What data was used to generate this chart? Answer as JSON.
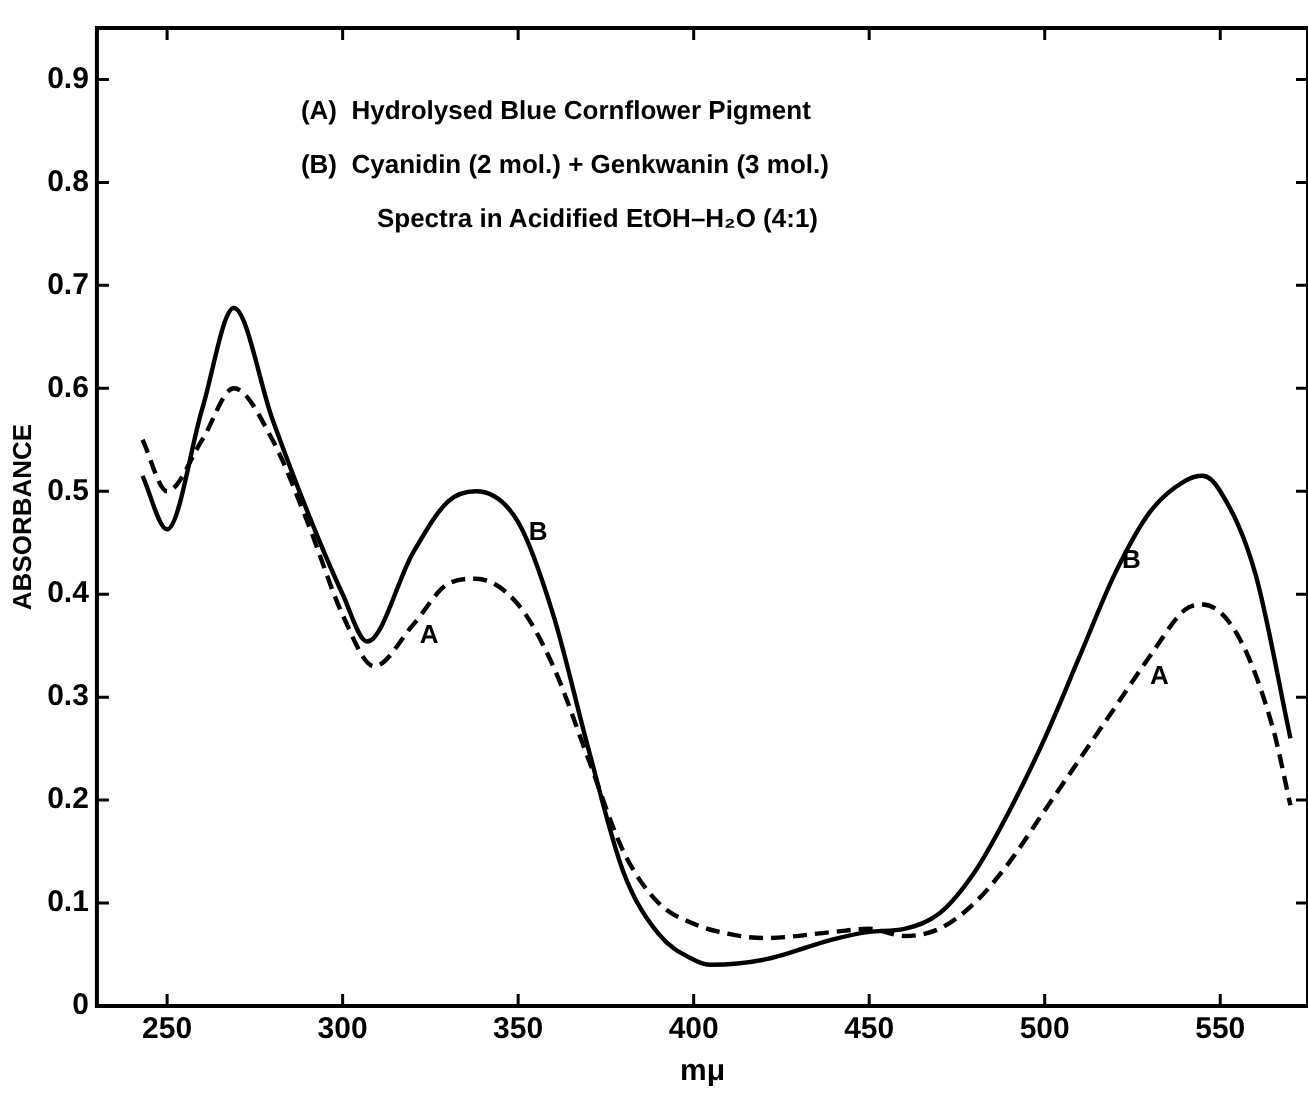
{
  "chart_data": {
    "type": "line",
    "xlabel": "mμ",
    "ylabel": "ABSORBANCE",
    "xlim": [
      230,
      575
    ],
    "xticks": [
      250,
      300,
      350,
      400,
      450,
      500,
      550
    ],
    "ylim": [
      0,
      0.95
    ],
    "yticks": [
      0,
      0.1,
      0.2,
      0.3,
      0.4,
      0.5,
      0.6,
      0.7,
      0.8,
      0.9
    ],
    "grid": false,
    "legend": false,
    "marker": "none",
    "series": [
      {
        "color": "#000000",
        "line_style": "solid",
        "x": [
          243,
          250,
          260,
          269,
          280,
          290,
          300,
          307,
          320,
          330,
          338,
          350,
          360,
          370,
          380,
          390,
          400,
          405,
          420,
          440,
          450,
          460,
          470,
          480,
          490,
          500,
          510,
          520,
          530,
          540,
          545,
          550,
          560,
          570
        ],
        "values": [
          0.515,
          0.463,
          0.58,
          0.678,
          0.57,
          0.48,
          0.4,
          0.354,
          0.44,
          0.49,
          0.5,
          0.47,
          0.38,
          0.25,
          0.13,
          0.07,
          0.045,
          0.04,
          0.045,
          0.065,
          0.072,
          0.075,
          0.09,
          0.13,
          0.19,
          0.26,
          0.34,
          0.42,
          0.48,
          0.51,
          0.515,
          0.5,
          0.42,
          0.26
        ]
      },
      {
        "color": "#000000",
        "line_style": "dashed",
        "x": [
          243,
          250,
          260,
          269,
          280,
          290,
          300,
          309,
          320,
          330,
          338,
          350,
          360,
          370,
          380,
          390,
          400,
          410,
          420,
          440,
          450,
          460,
          470,
          480,
          490,
          500,
          510,
          520,
          530,
          540,
          545,
          555,
          565,
          570
        ],
        "values": [
          0.55,
          0.5,
          0.55,
          0.6,
          0.55,
          0.47,
          0.38,
          0.33,
          0.37,
          0.41,
          0.415,
          0.39,
          0.33,
          0.24,
          0.15,
          0.1,
          0.08,
          0.07,
          0.066,
          0.072,
          0.075,
          0.068,
          0.075,
          0.1,
          0.14,
          0.19,
          0.24,
          0.29,
          0.34,
          0.385,
          0.39,
          0.36,
          0.27,
          0.195
        ]
      }
    ],
    "annotations": [
      "(A)  Hydrolysed Blue Cornflower Pigment",
      "(B)  Cyanidin (2 mol.) + Genkwanin (3 mol.)",
      "Spectra in Acidified EtOH–H₂O (4:1)",
      {
        "text": "B",
        "x": 353,
        "y": 0.46
      },
      {
        "text": "A",
        "x": 322,
        "y": 0.36
      },
      {
        "text": "B",
        "x": 522,
        "y": 0.432
      },
      {
        "text": "A",
        "x": 530,
        "y": 0.32
      }
    ]
  }
}
